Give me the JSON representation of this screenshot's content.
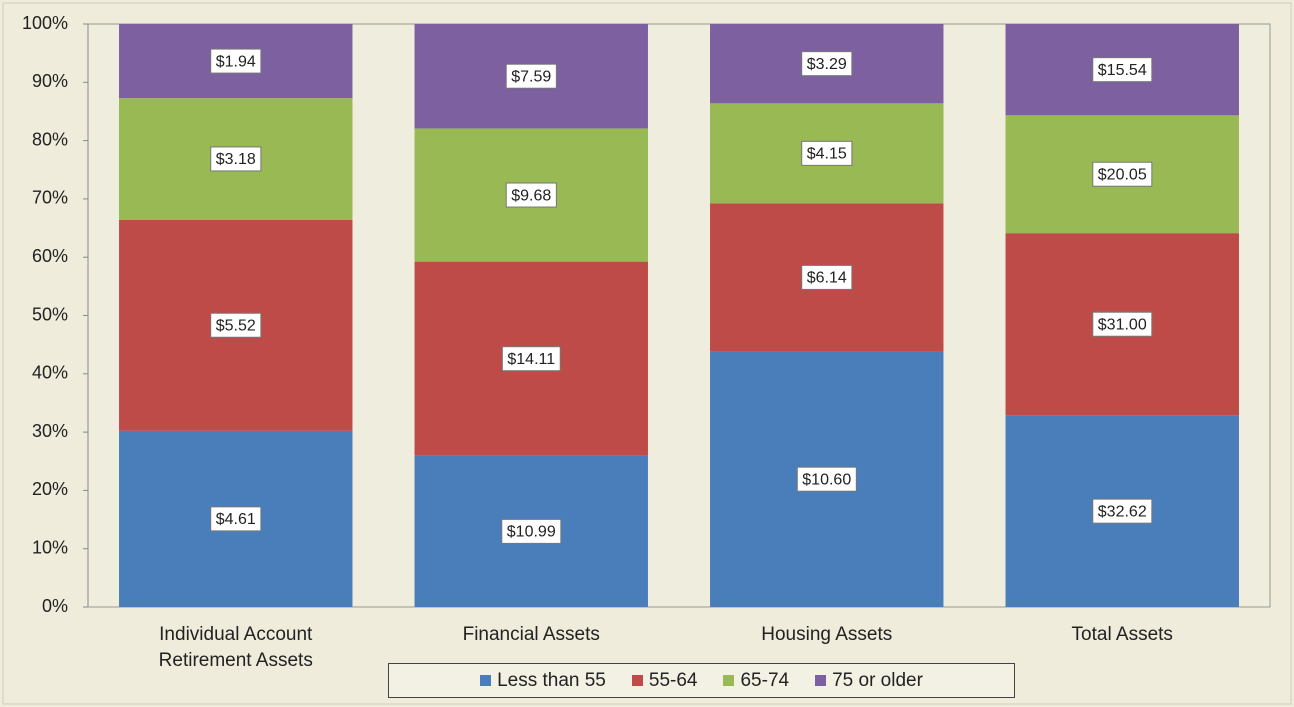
{
  "chart_data": {
    "type": "bar",
    "stacked": true,
    "normalize": true,
    "categories": [
      "Individual Account Retirement Assets",
      "Financial Assets",
      "Housing Assets",
      "Total Assets"
    ],
    "series": [
      {
        "name": "Less than 55",
        "color": "#4a7ebb",
        "values": [
          4.61,
          10.99,
          10.6,
          32.62
        ],
        "value_labels": [
          "$4.61",
          "$10.99",
          "$10.60",
          "$32.62"
        ]
      },
      {
        "name": "55-64",
        "color": "#be4b48",
        "values": [
          5.52,
          14.11,
          6.14,
          31.0
        ],
        "value_labels": [
          "$5.52",
          "$14.11",
          "$6.14",
          "$31.00"
        ]
      },
      {
        "name": "65-74",
        "color": "#98b954",
        "values": [
          3.18,
          9.68,
          4.15,
          20.05
        ],
        "value_labels": [
          "$3.18",
          "$9.68",
          "$4.15",
          "$20.05"
        ]
      },
      {
        "name": "75 or older",
        "color": "#7d60a0",
        "values": [
          1.94,
          7.59,
          3.29,
          15.54
        ],
        "value_labels": [
          "$1.94",
          "$7.59",
          "$3.29",
          "$15.54"
        ]
      }
    ],
    "ylim": [
      0,
      100
    ],
    "yticks": [
      {
        "value": 0,
        "label": "0%"
      },
      {
        "value": 10,
        "label": "10%"
      },
      {
        "value": 20,
        "label": "20%"
      },
      {
        "value": 30,
        "label": "30%"
      },
      {
        "value": 40,
        "label": "40%"
      },
      {
        "value": 50,
        "label": "50%"
      },
      {
        "value": 60,
        "label": "60%"
      },
      {
        "value": 70,
        "label": "70%"
      },
      {
        "value": 80,
        "label": "80%"
      },
      {
        "value": 90,
        "label": "90%"
      },
      {
        "value": 100,
        "label": "100%"
      }
    ],
    "grid": false,
    "legend": "bottom"
  }
}
